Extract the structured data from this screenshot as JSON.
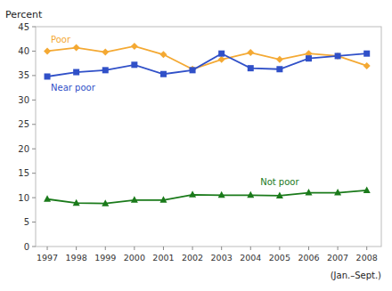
{
  "chart_data": {
    "type": "line",
    "ylabel": "Percent",
    "annotations": [
      "(Jan.–Sept.)"
    ],
    "x": [
      1997,
      1998,
      1999,
      2000,
      2001,
      2002,
      2003,
      2004,
      2005,
      2006,
      2007,
      2008
    ],
    "series": [
      {
        "name": "Poor",
        "color": "#f4a933",
        "marker": "diamond",
        "values": [
          40.0,
          40.7,
          39.8,
          41.0,
          39.3,
          36.3,
          38.3,
          39.7,
          38.3,
          39.5,
          39.0,
          37.0
        ]
      },
      {
        "name": "Near poor",
        "color": "#3050c8",
        "marker": "square",
        "values": [
          34.8,
          35.7,
          36.1,
          37.2,
          35.3,
          36.1,
          39.5,
          36.5,
          36.3,
          38.5,
          39.0,
          39.5
        ]
      },
      {
        "name": "Not poor",
        "color": "#1a7a1a",
        "marker": "triangle",
        "values": [
          9.7,
          8.9,
          8.8,
          9.5,
          9.5,
          10.6,
          10.5,
          10.5,
          10.4,
          11.0,
          11.0,
          11.5
        ]
      }
    ],
    "xlim": [
      1996.6,
      2008.5
    ],
    "xticks": [
      1997,
      1998,
      1999,
      2000,
      2001,
      2002,
      2003,
      2004,
      2005,
      2006,
      2007,
      2008
    ],
    "ylim": [
      0,
      45
    ],
    "yticks": [
      0,
      5,
      10,
      15,
      20,
      25,
      30,
      35,
      40,
      45
    ],
    "grid": false
  }
}
